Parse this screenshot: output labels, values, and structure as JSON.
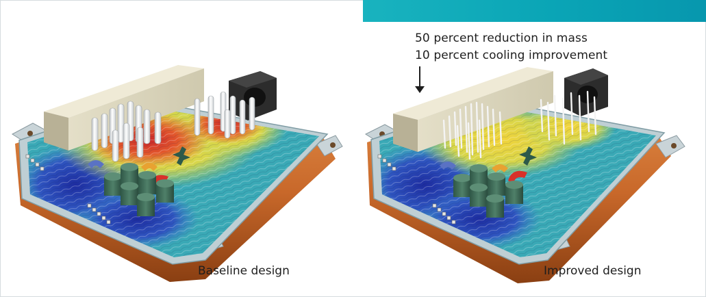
{
  "header": {
    "banner_color": "#0aa5b6"
  },
  "annotation": {
    "line1": "50 percent reduction in mass",
    "line2": "10 percent cooling improvement",
    "arrow_icon": "arrow-down-icon"
  },
  "panels": [
    {
      "caption": "Baseline design"
    },
    {
      "caption": "Improved design"
    }
  ],
  "colors": {
    "housing": "#c8682a",
    "fins": "#f4f4f4",
    "components": "#3f6b58",
    "connector_block": "#d6d1b8",
    "fan": "#2c2c2c",
    "hot": "#d8312a",
    "warm": "#e8d13a",
    "cool": "#3aa9b6",
    "cold": "#2a3fb0"
  }
}
